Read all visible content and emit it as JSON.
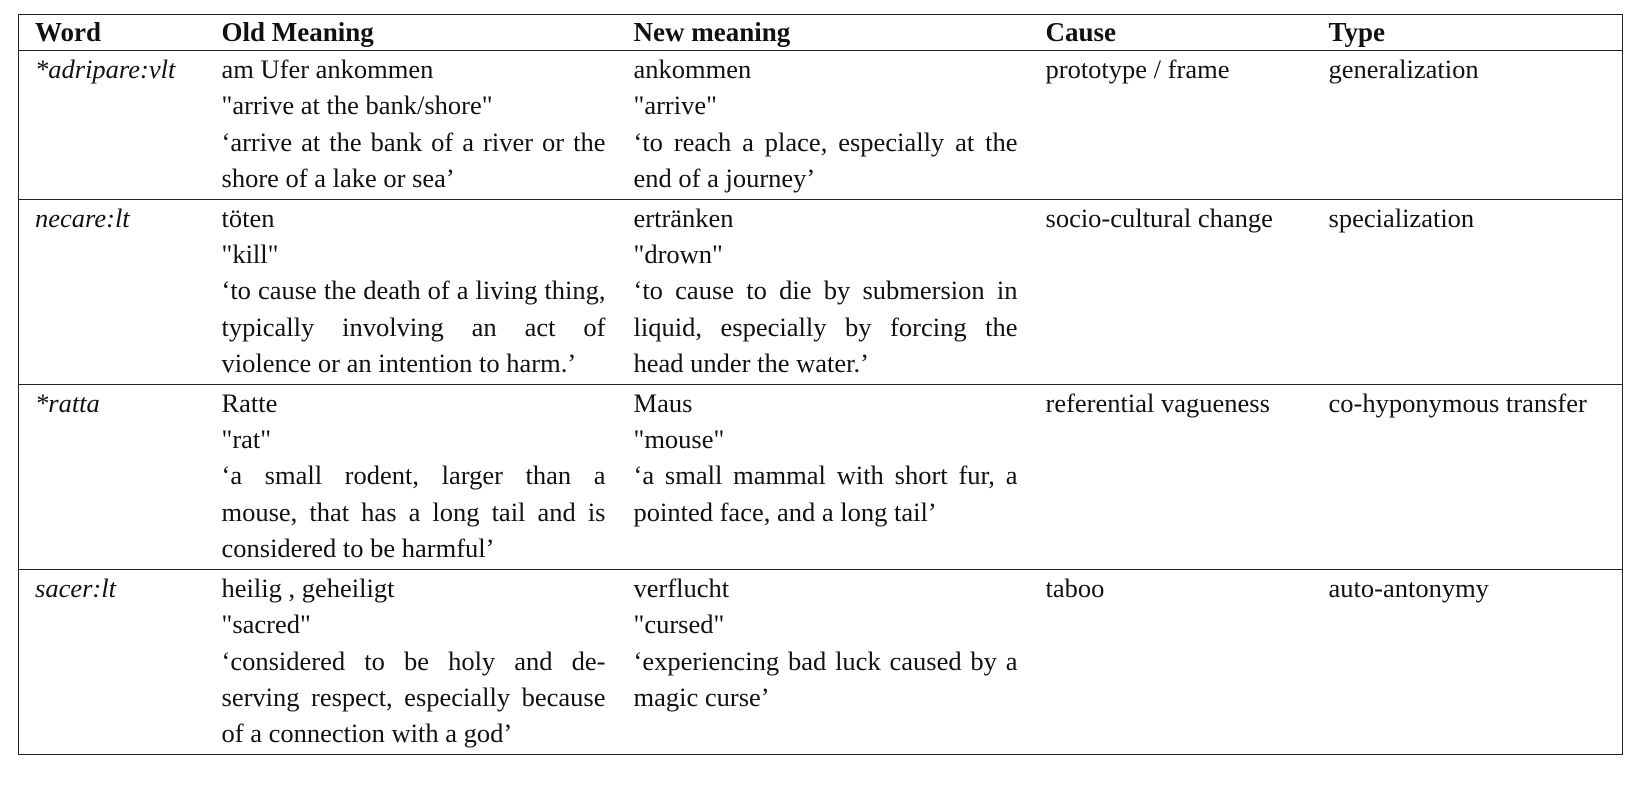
{
  "table": {
    "headers": {
      "word": "Word",
      "old": "Old Meaning",
      "new": "New meaning",
      "cause": "Cause",
      "type": "Type"
    },
    "rows": [
      {
        "word": "*adripare:vlt",
        "old_de": "am Ufer ankommen",
        "old_en": "\"arrive at the bank/shore\"",
        "old_def": "‘arrive at the bank of a river or the shore of a lake or sea’",
        "new_de": "ankommen",
        "new_en": "\"arrive\"",
        "new_def": "‘to reach a place, especially at the end of a journey’",
        "cause": "prototype / frame",
        "type": "generalization"
      },
      {
        "word": "necare:lt",
        "old_de": "töten",
        "old_en": "\"kill\"",
        "old_def": "‘to cause the death of a living thing, typically involving an act of violence or an intention to harm.’",
        "new_de": "ertränken",
        "new_en": "\"drown\"",
        "new_def": "‘to cause to die by submersion in liquid, especially by forcing the head under the water.’",
        "cause": "socio-cultural change",
        "type": "specialization"
      },
      {
        "word": "*ratta",
        "old_de": "Ratte",
        "old_en": "\"rat\"",
        "old_def": "‘a small rodent, larger than a mouse, that has a long tail and is considered to be harmful’",
        "new_de": "Maus",
        "new_en": "\"mouse\"",
        "new_def": "‘a small mammal with short fur, a pointed face, and a long tail’",
        "cause": "referential vagueness",
        "type": "co-hyponymous transfer"
      },
      {
        "word": "sacer:lt",
        "old_de": "heilig , geheiligt",
        "old_en": "\"sacred\"",
        "old_def": "‘considered to be holy and de­serving respect, especially be­cause of a connection with a god’",
        "new_de": "verflucht",
        "new_en": "\"cursed\"",
        "new_def": "‘experiencing bad luck caused by a magic curse’",
        "cause": "taboo",
        "type": "auto-antonymy"
      }
    ]
  }
}
